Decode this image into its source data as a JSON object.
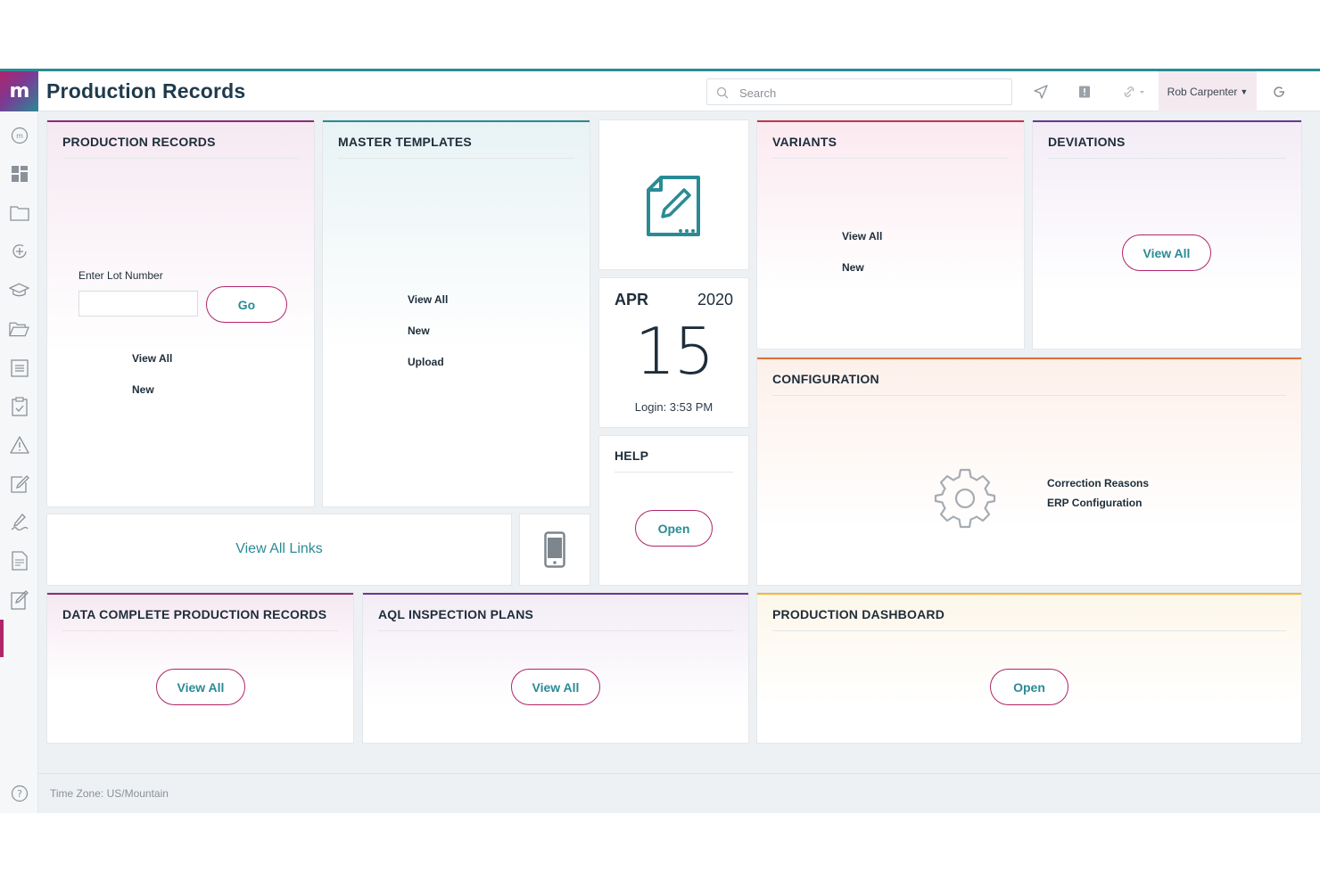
{
  "header": {
    "logo_text": "m",
    "title": "Production Records",
    "search_placeholder": "Search",
    "user_name": "Rob Carpenter",
    "icons": [
      "send-icon",
      "alert-icon",
      "link-icon",
      "refresh-icon"
    ]
  },
  "sidebar": {
    "items": [
      "home-icon",
      "dashboard-icon",
      "folder-icon",
      "add-record-icon",
      "training-icon",
      "open-folder-icon",
      "list-icon",
      "checklist-icon",
      "warning-icon",
      "edit-icon",
      "signature-icon",
      "document-icon",
      "edit-records-icon"
    ],
    "help_icon": "help-icon",
    "active_index": 12
  },
  "cards": {
    "production_records": {
      "title": "PRODUCTION RECORDS",
      "lot_label": "Enter Lot Number",
      "lot_value": "",
      "go_label": "Go",
      "view_all": "View All",
      "new": "New"
    },
    "master_templates": {
      "title": "MASTER TEMPLATES",
      "view_all": "View All",
      "new": "New",
      "upload": "Upload"
    },
    "document_icon": "document-edit-icon",
    "date": {
      "month": "APR",
      "year": "2020",
      "day": "15",
      "login": "Login: 3:53 PM"
    },
    "help": {
      "title": "HELP",
      "open": "Open"
    },
    "variants": {
      "title": "VARIANTS",
      "view_all": "View All",
      "new": "New"
    },
    "deviations": {
      "title": "DEVIATIONS",
      "view_all": "View All"
    },
    "configuration": {
      "title": "CONFIGURATION",
      "links": [
        "Correction Reasons",
        "ERP Configuration"
      ]
    },
    "links": {
      "view_all_links": "View All Links"
    },
    "mobile_icon": "mobile-phone-icon",
    "data_complete": {
      "title": "DATA COMPLETE PRODUCTION RECORDS",
      "view_all": "View All"
    },
    "aql": {
      "title": "AQL INSPECTION PLANS",
      "view_all": "View All"
    },
    "production_dashboard": {
      "title": "PRODUCTION DASHBOARD",
      "open": "Open"
    }
  },
  "footer": {
    "timezone": "Time Zone: US/Mountain"
  },
  "colors": {
    "accent_teal": "#2a8b95",
    "accent_magenta": "#b0246a",
    "orange": "#e0703a",
    "yellow": "#f2b640"
  }
}
